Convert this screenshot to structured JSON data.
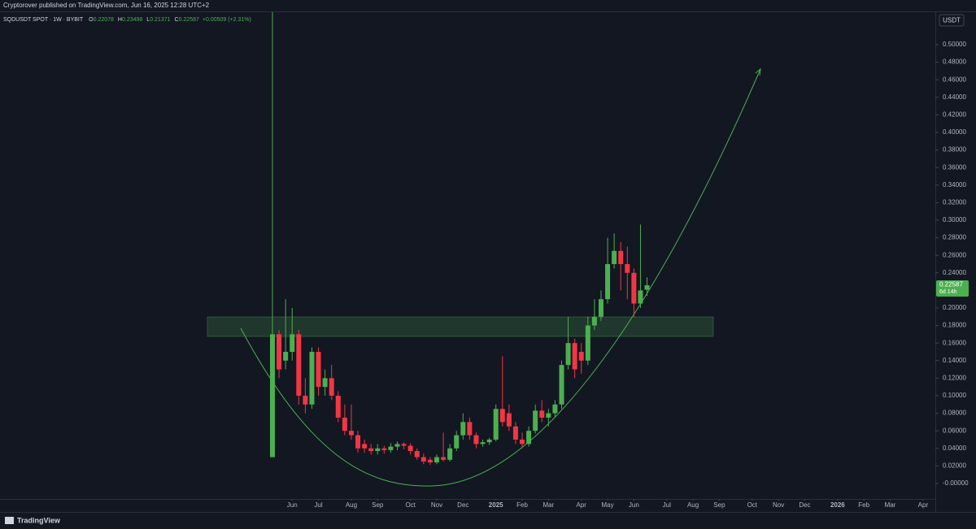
{
  "header": {
    "published": "Cryptorover published on TradingView.com, Jun 16, 2025 12:28 UTC+2"
  },
  "footer": {
    "brand": "TradingView"
  },
  "chart_data": {
    "type": "candlestick",
    "symbol": "SQDUSDT SPOT · 1W · BYBIT",
    "ohlc_keys": [
      "O",
      "H",
      "L",
      "C"
    ],
    "change": "+0.00509 (+2.31%)",
    "currency": "USDT",
    "countdown": "6d 14h",
    "up_color": "#4caf50",
    "down_color": "#f23645",
    "grid": false,
    "open": [
      0.03,
      0.17,
      0.14,
      0.15,
      0.17,
      0.1,
      0.09,
      0.15,
      0.11,
      0.12,
      0.1,
      0.075,
      0.06,
      0.055,
      0.045,
      0.04,
      0.037,
      0.04,
      0.038,
      0.042,
      0.045,
      0.043,
      0.037,
      0.03,
      0.027,
      0.024,
      0.03,
      0.027,
      0.04,
      0.055,
      0.07,
      0.055,
      0.045,
      0.047,
      0.05,
      0.085,
      0.08,
      0.065,
      0.05,
      0.045,
      0.06,
      0.083,
      0.075,
      0.08,
      0.09,
      0.135,
      0.16,
      0.15,
      0.14,
      0.18,
      0.19,
      0.21,
      0.25,
      0.265,
      0.25,
      0.24,
      0.205,
      0.22078
    ],
    "high": [
      0.537,
      0.175,
      0.21,
      0.2,
      0.175,
      0.12,
      0.155,
      0.155,
      0.13,
      0.135,
      0.105,
      0.09,
      0.09,
      0.06,
      0.05,
      0.045,
      0.045,
      0.043,
      0.046,
      0.048,
      0.047,
      0.046,
      0.04,
      0.034,
      0.03,
      0.033,
      0.058,
      0.045,
      0.06,
      0.08,
      0.075,
      0.058,
      0.05,
      0.052,
      0.09,
      0.145,
      0.09,
      0.07,
      0.058,
      0.065,
      0.09,
      0.095,
      0.085,
      0.095,
      0.14,
      0.19,
      0.165,
      0.16,
      0.19,
      0.21,
      0.22,
      0.28,
      0.285,
      0.275,
      0.27,
      0.245,
      0.295,
      0.23498
    ],
    "low": [
      0.03,
      0.12,
      0.13,
      0.14,
      0.09,
      0.08,
      0.085,
      0.1,
      0.1,
      0.095,
      0.07,
      0.055,
      0.05,
      0.035,
      0.035,
      0.033,
      0.033,
      0.034,
      0.035,
      0.038,
      0.039,
      0.033,
      0.027,
      0.022,
      0.021,
      0.022,
      0.025,
      0.025,
      0.037,
      0.05,
      0.05,
      0.04,
      0.042,
      0.044,
      0.048,
      0.065,
      0.06,
      0.045,
      0.04,
      0.042,
      0.057,
      0.07,
      0.065,
      0.075,
      0.085,
      0.13,
      0.12,
      0.125,
      0.135,
      0.175,
      0.185,
      0.205,
      0.245,
      0.22,
      0.21,
      0.19,
      0.2,
      0.21371
    ],
    "close": [
      0.17,
      0.13,
      0.15,
      0.17,
      0.1,
      0.09,
      0.15,
      0.11,
      0.12,
      0.1,
      0.075,
      0.06,
      0.055,
      0.04,
      0.04,
      0.037,
      0.04,
      0.038,
      0.042,
      0.045,
      0.043,
      0.037,
      0.03,
      0.025,
      0.024,
      0.03,
      0.027,
      0.04,
      0.055,
      0.07,
      0.055,
      0.045,
      0.047,
      0.05,
      0.085,
      0.07,
      0.065,
      0.05,
      0.045,
      0.06,
      0.083,
      0.075,
      0.08,
      0.09,
      0.135,
      0.16,
      0.13,
      0.14,
      0.18,
      0.19,
      0.21,
      0.25,
      0.265,
      0.25,
      0.24,
      0.205,
      0.22,
      0.22587
    ],
    "xlim": [
      -41.46,
      100.87
    ],
    "xticks": [
      {
        "value": 3,
        "label": "Jun"
      },
      {
        "value": 7,
        "label": "Jul"
      },
      {
        "value": 12,
        "label": "Aug"
      },
      {
        "value": 16,
        "label": "Sep"
      },
      {
        "value": 21,
        "label": "Oct"
      },
      {
        "value": 25,
        "label": "Nov"
      },
      {
        "value": 29,
        "label": "Dec"
      },
      {
        "value": 34,
        "label": "2025"
      },
      {
        "value": 38,
        "label": "Feb"
      },
      {
        "value": 42,
        "label": "Mar"
      },
      {
        "value": 47,
        "label": "Apr"
      },
      {
        "value": 51,
        "label": "May"
      },
      {
        "value": 55,
        "label": "Jun"
      },
      {
        "value": 60,
        "label": "Jul"
      },
      {
        "value": 64,
        "label": "Aug"
      },
      {
        "value": 68,
        "label": "Sep"
      },
      {
        "value": 73,
        "label": "Oct"
      },
      {
        "value": 77,
        "label": "Nov"
      },
      {
        "value": 81,
        "label": "Dec"
      },
      {
        "value": 86,
        "label": "2026"
      },
      {
        "value": 90,
        "label": "Feb"
      },
      {
        "value": 94,
        "label": "Mar"
      },
      {
        "value": 99,
        "label": "Apr"
      }
    ],
    "ylim": [
      -0.0278,
      0.537
    ],
    "yticks": [
      {
        "value": 0,
        "label": "-0.00000"
      },
      {
        "value": 0.02,
        "label": "0.02000"
      },
      {
        "value": 0.04,
        "label": "0.04000"
      },
      {
        "value": 0.06,
        "label": "0.06000"
      },
      {
        "value": 0.08,
        "label": "0.08000"
      },
      {
        "value": 0.1,
        "label": "0.10000"
      },
      {
        "value": 0.12,
        "label": "0.12000"
      },
      {
        "value": 0.14,
        "label": "0.14000"
      },
      {
        "value": 0.16,
        "label": "0.16000"
      },
      {
        "value": 0.18,
        "label": "0.18000"
      },
      {
        "value": 0.2,
        "label": "0.20000"
      },
      {
        "value": 0.22,
        "label": "0.22000"
      },
      {
        "value": 0.24,
        "label": "0.24000"
      },
      {
        "value": 0.26,
        "label": "0.26000"
      },
      {
        "value": 0.28,
        "label": "0.28000"
      },
      {
        "value": 0.3,
        "label": "0.30000"
      },
      {
        "value": 0.32,
        "label": "0.32000"
      },
      {
        "value": 0.34,
        "label": "0.34000"
      },
      {
        "value": 0.36,
        "label": "0.36000"
      },
      {
        "value": 0.38,
        "label": "0.38000"
      },
      {
        "value": 0.4,
        "label": "0.40000"
      },
      {
        "value": 0.42,
        "label": "0.42000"
      },
      {
        "value": 0.44,
        "label": "0.44000"
      },
      {
        "value": 0.46,
        "label": "0.46000"
      },
      {
        "value": 0.48,
        "label": "0.48000"
      },
      {
        "value": 0.5,
        "label": "0.50000"
      }
    ]
  }
}
